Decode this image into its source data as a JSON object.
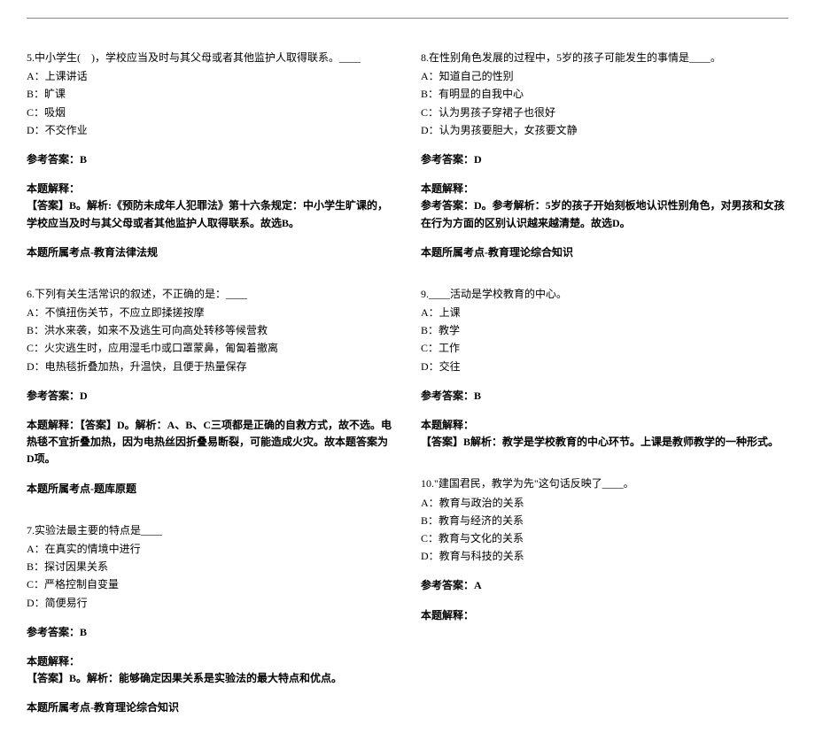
{
  "left": {
    "q5": {
      "question": "5.中小学生(　)，学校应当及时与其父母或者其他监护人取得联系。____",
      "optA": "A：上课讲话",
      "optB": "B：旷课",
      "optC": "C：吸烟",
      "optD": "D：不交作业",
      "answerLabel": "参考答案：B",
      "explLabel": "本题解释：",
      "explText": "【答案】B。解析:《预防未成年人犯罪法》第十六条规定：中小学生旷课的，学校应当及时与其父母或者其他监护人取得联系。故选B。",
      "topicLabel": "本题所属考点-教育法律法规"
    },
    "q6": {
      "question": "6.下列有关生活常识的叙述，不正确的是：____",
      "optA": "A：不慎扭伤关节，不应立即揉搓按摩",
      "optB": "B：洪水来袭，如来不及逃生可向高处转移等候营救",
      "optC": "C：火灾逃生时，应用湿毛巾或口罩蒙鼻，匍匐着撤离",
      "optD": "D：电热毯折叠加热，升温快，且便于热量保存",
      "answerLabel": "参考答案：D",
      "explLabel": "本题解释：【答案】D。解析：A、B、C三项都是正确的自救方式，故不选。电热毯不宜折叠加热，因为电热丝因折叠易断裂，可能造成火灾。故本题答案为D项。",
      "topicLabel": "本题所属考点-题库原题"
    },
    "q7": {
      "question": "7.实验法最主要的特点是____",
      "optA": "A：在真实的情境中进行",
      "optB": "B：探讨因果关系",
      "optC": "C：严格控制自变量",
      "optD": "D：简便易行",
      "answerLabel": "参考答案：B",
      "explLabel": "本题解释：",
      "explText": "【答案】B。解析：能够确定因果关系是实验法的最大特点和优点。",
      "topicLabel": "本题所属考点-教育理论综合知识"
    }
  },
  "right": {
    "q8": {
      "question": "8.在性别角色发展的过程中，5岁的孩子可能发生的事情是____。",
      "optA": "A：知道自己的性别",
      "optB": "B：有明显的自我中心",
      "optC": "C：认为男孩子穿裙子也很好",
      "optD": "D：认为男孩要胆大，女孩要文静",
      "answerLabel": "参考答案：D",
      "explLabel": "本题解释：",
      "explText": "参考答案：D。参考解析：5岁的孩子开始刻板地认识性别角色，对男孩和女孩在行为方面的区别认识越来越清楚。故选D。",
      "topicLabel": "本题所属考点-教育理论综合知识"
    },
    "q9": {
      "question": "9.____活动是学校教育的中心。",
      "optA": "A：上课",
      "optB": "B：教学",
      "optC": "C：工作",
      "optD": "D：交往",
      "answerLabel": "参考答案：B",
      "explLabel": "本题解释：",
      "explText": "【答案】B解析：教学是学校教育的中心环节。上课是教师教学的一种形式。",
      "topicLabel": ""
    },
    "q10": {
      "question": "10.\"建国君民，教学为先\"这句话反映了____。",
      "optA": "A：教育与政治的关系",
      "optB": "B：教育与经济的关系",
      "optC": "C：教育与文化的关系",
      "optD": "D：教育与科技的关系",
      "answerLabel": "参考答案：A",
      "explLabel": "本题解释："
    }
  }
}
